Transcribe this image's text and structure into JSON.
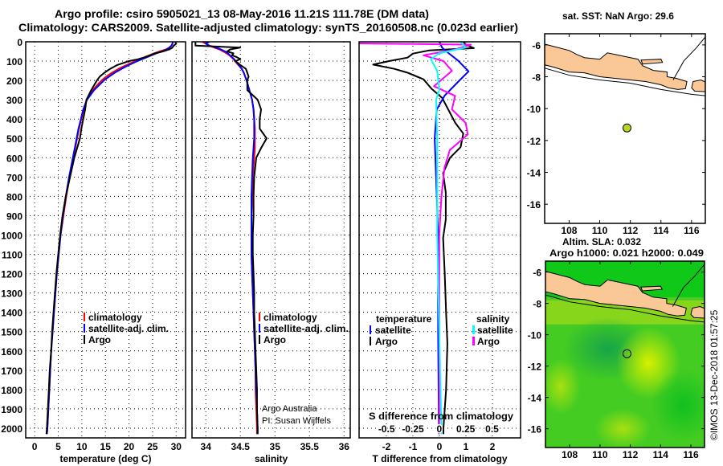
{
  "header": {
    "title_line1": "Argo profile: csiro 5905021_13 08-May-2016 11.21S 111.78E (DM data)",
    "title_line2": "Climatology: CARS2009. Satellite-adjusted climatology: synTS_20160508.nc (0.023d earlier)"
  },
  "colors": {
    "climatology": "#ff0000",
    "satellite": "#0000ff",
    "argo": "#000000",
    "sal_argo": "#ff00ff",
    "sal_satellite": "#00ffff",
    "land": "#f9c896"
  },
  "chart_data": [
    {
      "id": "temperature",
      "type": "line",
      "xlabel": "temperature (deg C)",
      "ylabel": "",
      "xlim": [
        -1.9,
        32
      ],
      "ylim": [
        0,
        2050
      ],
      "y_inverted": true,
      "grid": true,
      "xticks": [
        0,
        5,
        10,
        15,
        20,
        25,
        30
      ],
      "xtick_labels": [
        "0",
        "5",
        "10",
        "15",
        "20",
        "25",
        "30"
      ],
      "yticks": [
        0,
        100,
        200,
        300,
        400,
        500,
        600,
        700,
        800,
        900,
        1000,
        1100,
        1200,
        1300,
        1400,
        1500,
        1600,
        1700,
        1800,
        1900,
        2000
      ],
      "ytick_labels": [
        "0",
        "100",
        "200",
        "300",
        "400",
        "500",
        "600",
        "700",
        "800",
        "900",
        "1000",
        "1100",
        "1200",
        "1300",
        "1400",
        "1500",
        "1600",
        "1700",
        "1800",
        "1900",
        "2000"
      ],
      "depth": [
        0,
        10,
        20,
        30,
        40,
        50,
        60,
        70,
        80,
        90,
        100,
        120,
        140,
        160,
        180,
        200,
        250,
        300,
        350,
        400,
        450,
        500,
        550,
        600,
        700,
        800,
        900,
        1000,
        1100,
        1200,
        1300,
        1400,
        1500,
        1600,
        1700,
        1800,
        1900,
        2000,
        2030
      ],
      "series": [
        {
          "name": "climatology",
          "color_key": "climatology",
          "values": [
            29.3,
            29.2,
            29,
            28.5,
            27.8,
            26.5,
            25.3,
            24.3,
            23.3,
            22.3,
            21.3,
            19.5,
            17.8,
            16.4,
            15.2,
            14.2,
            12.3,
            11.0,
            10.4,
            9.9,
            9.4,
            9.0,
            8.6,
            8.2,
            7.4,
            6.7,
            6.1,
            5.5,
            5.1,
            4.7,
            4.4,
            4.1,
            3.8,
            3.5,
            3.3,
            3.1,
            2.9,
            2.7,
            2.6
          ]
        },
        {
          "name": "satellite-adj. clim.",
          "color_key": "satellite",
          "values": [
            29.3,
            29.2,
            29.0,
            28.6,
            28,
            27,
            25.8,
            24.8,
            23.8,
            22.8,
            21.8,
            20.0,
            18.4,
            17.0,
            15.8,
            14.7,
            12.6,
            11.1,
            10.3,
            9.8,
            9.3,
            8.9,
            8.5,
            8.1,
            7.3,
            6.6,
            6.0,
            5.5,
            5.1,
            4.7,
            4.4,
            4.1,
            3.8,
            3.5,
            3.3,
            3.1,
            2.9,
            2.7,
            2.6
          ]
        },
        {
          "name": "Argo",
          "color_key": "argo",
          "values": [
            29.8,
            30.0,
            29.5,
            29.2,
            28.5,
            27.2,
            25.5,
            24.5,
            23.4,
            22.0,
            20.0,
            17.5,
            16.0,
            14.8,
            13.8,
            13.2,
            12.0,
            11.0,
            10.7,
            10.3,
            9.9,
            9.6,
            9.0,
            8.4,
            7.5,
            6.6,
            5.9,
            5.4,
            5.0,
            4.6,
            4.3,
            4.0,
            3.7,
            3.5,
            3.2,
            3.0,
            2.8,
            2.6,
            2.5
          ]
        }
      ],
      "legend": [
        "climatology",
        "satellite-adj. clim.",
        "Argo"
      ],
      "legend_placement": "lower-right"
    },
    {
      "id": "salinity",
      "type": "line",
      "xlabel": "salinity",
      "xlim": [
        33.8,
        36.09
      ],
      "ylim": [
        0,
        2050
      ],
      "y_inverted": true,
      "grid": true,
      "xticks": [
        34,
        34.5,
        35,
        35.5,
        36
      ],
      "xtick_labels": [
        "34",
        "34.5",
        "35",
        "35.5",
        "36"
      ],
      "depth": [
        0,
        10,
        20,
        30,
        40,
        50,
        60,
        70,
        80,
        90,
        100,
        120,
        140,
        160,
        180,
        200,
        250,
        300,
        350,
        400,
        450,
        500,
        550,
        600,
        700,
        800,
        900,
        1000,
        1100,
        1200,
        1300,
        1400,
        1500,
        1600,
        1700,
        1800,
        1900,
        2000,
        2030
      ],
      "series": [
        {
          "name": "climatology",
          "color_key": "climatology",
          "values": [
            33.95,
            34.0,
            34.05,
            34.12,
            34.2,
            34.25,
            34.3,
            34.34,
            34.37,
            34.4,
            34.42,
            34.47,
            34.52,
            34.55,
            34.57,
            34.59,
            34.63,
            34.67,
            34.69,
            34.7,
            34.71,
            34.71,
            34.71,
            34.7,
            34.68,
            34.67,
            34.66,
            34.66,
            34.66,
            34.67,
            34.68,
            34.69,
            34.7,
            34.71,
            34.72,
            34.72,
            34.73,
            34.74,
            34.74
          ]
        },
        {
          "name": "satellite-adj. clim.",
          "color_key": "satellite",
          "values": [
            34.05,
            34.0,
            34.05,
            34.15,
            34.22,
            34.28,
            34.32,
            34.35,
            34.38,
            34.41,
            34.43,
            34.48,
            34.52,
            34.55,
            34.57,
            34.59,
            34.63,
            34.67,
            34.69,
            34.7,
            34.7,
            34.7,
            34.69,
            34.68,
            34.67,
            34.66,
            34.66,
            34.66,
            34.66,
            34.67,
            34.68,
            34.69,
            34.7,
            34.71,
            34.72,
            34.73,
            34.74,
            34.75,
            34.75
          ]
        },
        {
          "name": "Argo",
          "color_key": "argo",
          "values": [
            33.85,
            33.85,
            33.85,
            34.5,
            34.35,
            34.31,
            34.4,
            34.38,
            34.45,
            34.5,
            34.43,
            34.5,
            34.58,
            34.6,
            34.62,
            34.6,
            34.6,
            34.75,
            34.8,
            34.78,
            34.78,
            34.88,
            34.8,
            34.73,
            34.7,
            34.69,
            34.69,
            34.68,
            34.68,
            34.69,
            34.7,
            34.7,
            34.71,
            34.72,
            34.73,
            34.74,
            34.74,
            34.75,
            34.75
          ]
        }
      ],
      "legend": [
        "climatology",
        "satellite-adj. clim.",
        "Argo"
      ],
      "legend_placement": "lower-right",
      "annotation": [
        "Argo Australia",
        "PI: Susan Wijffels"
      ]
    },
    {
      "id": "difference",
      "type": "line",
      "xlabel": "T difference from climatology",
      "xlim": [
        -3.03,
        3.06
      ],
      "xticks": [
        -2,
        -1,
        0,
        1,
        2
      ],
      "xtick_labels": [
        "-2",
        "-1",
        "0",
        "1",
        "2"
      ],
      "secondary_xlabel": "S difference from climatology",
      "secondary_xlim": [
        -0.76,
        0.77
      ],
      "secondary_xticks": [
        -0.5,
        -0.25,
        0,
        0.25,
        0.5
      ],
      "secondary_xtick_labels": [
        "-0.5",
        "-0.25",
        "0",
        "0.25",
        "0.5"
      ],
      "ylim": [
        0,
        2050
      ],
      "y_inverted": true,
      "grid": true,
      "series": [
        {
          "name": "temperature Argo",
          "axis": "T",
          "color_key": "argo",
          "depth": [
            0,
            15,
            33,
            45,
            61,
            82,
            100,
            118,
            140,
            160,
            194,
            243,
            290,
            368,
            420,
            475,
            545,
            600,
            680,
            780,
            920,
            1015,
            1200,
            1400,
            1560,
            1800,
            2000,
            2030
          ],
          "values": [
            0.9,
            1.0,
            1.3,
            -0.4,
            -1.0,
            -1.2,
            -1.9,
            -2.5,
            -1.7,
            -1.2,
            -0.6,
            -0.3,
            0.1,
            0.4,
            0.6,
            0.9,
            0.8,
            0.4,
            0.14,
            0.24,
            0.24,
            0.14,
            0.2,
            0.25,
            0.3,
            0.25,
            0.15,
            0.15
          ]
        },
        {
          "name": "temperature satellite",
          "axis": "T",
          "color_key": "satellite",
          "depth": [
            0,
            30,
            54,
            97,
            153,
            208,
            278,
            350,
            500,
            800,
            1000,
            1500,
            2000,
            2030
          ],
          "values": [
            0,
            0.1,
            0.3,
            0.7,
            1.1,
            0.7,
            0.2,
            -0.1,
            -0.18,
            -0.1,
            -0.05,
            -0.05,
            -0.02,
            -0.02
          ]
        },
        {
          "name": "salinity Argo",
          "axis": "S",
          "color_key": "sal_argo",
          "depth": [
            0,
            8,
            15,
            40,
            70,
            100,
            150,
            230,
            280,
            350,
            420,
            480,
            560,
            650,
            800,
            1000,
            1500,
            1600,
            2000,
            2030
          ],
          "values": [
            -0.8,
            -0.8,
            0.3,
            0.15,
            -0.15,
            0.04,
            0.12,
            -0.05,
            0.15,
            0.12,
            0.25,
            0.27,
            0.1,
            0.05,
            0.02,
            0.0,
            0.0,
            0.0,
            0.0,
            0.0
          ]
        },
        {
          "name": "salinity satellite",
          "axis": "S",
          "color_key": "sal_satellite",
          "depth": [
            0,
            30,
            60,
            90,
            150,
            250,
            300,
            500,
            1000,
            1500,
            2000,
            2030
          ],
          "values": [
            0.2,
            0.25,
            0.0,
            -0.08,
            -0.02,
            0.0,
            -0.03,
            -0.02,
            -0.02,
            0.0,
            0.02,
            0.02
          ]
        }
      ],
      "legend_temperature_title": "temperature",
      "legend_salinity_title": "salinity",
      "legend_labels": {
        "satellite": "satellite",
        "argo": "Argo"
      }
    },
    {
      "id": "sst_map",
      "type": "scatter",
      "title": "sat. SST: NaN Argo: 29.6",
      "xlim": [
        106.4,
        116.9
      ],
      "ylim": [
        -17.2,
        -5.3
      ],
      "xticks": [
        108,
        110,
        112,
        114,
        116
      ],
      "xtick_labels": [
        "108",
        "110",
        "112",
        "114",
        "116"
      ],
      "yticks": [
        -6,
        -8,
        -10,
        -12,
        -14,
        -16
      ],
      "ytick_labels": [
        "-6",
        "-8",
        "-10",
        "-12",
        "-14",
        "-16"
      ],
      "points": [
        {
          "lon": 111.78,
          "lat": -11.21,
          "color": "#b8d820"
        }
      ]
    },
    {
      "id": "sla_map",
      "type": "heatmap",
      "title_line1": "Altim. SLA: 0.032",
      "title_line2": "Argo h1000: 0.021 h2000: 0.049",
      "xlim": [
        106.4,
        116.9
      ],
      "ylim": [
        -17.2,
        -5.3
      ],
      "xticks": [
        108,
        110,
        112,
        114,
        116
      ],
      "xtick_labels": [
        "108",
        "110",
        "112",
        "114",
        "116"
      ],
      "yticks": [
        -6,
        -8,
        -10,
        -12,
        -14,
        -16
      ],
      "ytick_labels": [
        "-6",
        "-8",
        "-10",
        "-12",
        "-14",
        "-16"
      ],
      "points": [
        {
          "lon": 111.78,
          "lat": -11.21
        }
      ]
    }
  ],
  "footer": {
    "copyright": "©IMOS 13-Dec-2018 01:57:25"
  }
}
